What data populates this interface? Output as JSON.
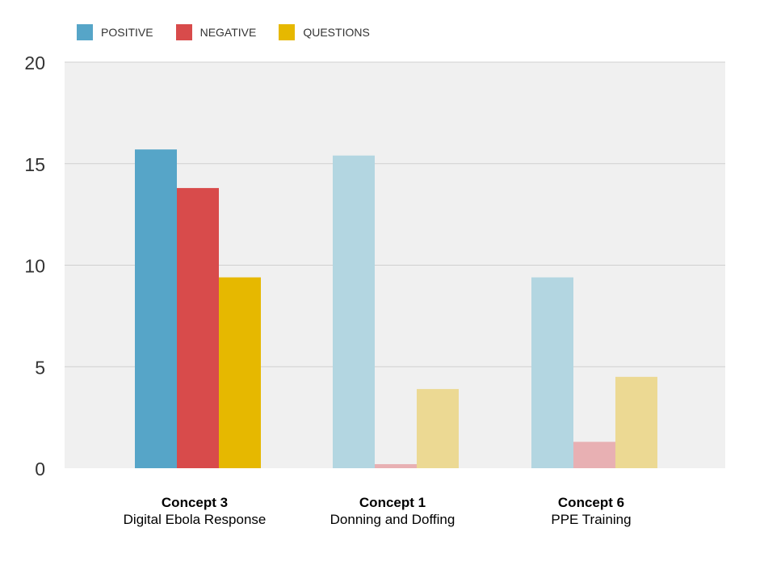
{
  "chart_data": {
    "type": "bar",
    "categories": [
      {
        "title": "Concept 3",
        "subtitle": "Digital Ebola Response"
      },
      {
        "title": "Concept 1",
        "subtitle": "Donning and Doffing"
      },
      {
        "title": "Concept 6",
        "subtitle": "PPE Training"
      }
    ],
    "series": [
      {
        "name": "POSITIVE",
        "color": "#56a5c8",
        "faded_color": "#b3d6e1",
        "values": [
          15.7,
          15.4,
          9.4
        ]
      },
      {
        "name": "NEGATIVE",
        "color": "#d84b4b",
        "faded_color": "#e8b0b3",
        "values": [
          13.8,
          0.2,
          1.3
        ]
      },
      {
        "name": "QUESTIONS",
        "color": "#e6b800",
        "faded_color": "#ecd993",
        "values": [
          9.4,
          3.9,
          4.5
        ]
      }
    ],
    "highlighted_category": 0,
    "ylim": [
      0,
      20
    ],
    "yticks": [
      "0",
      "5",
      "10",
      "15",
      "20"
    ],
    "grid": true,
    "legend_position": "top-left",
    "plot_background": "#f0f0f0"
  }
}
